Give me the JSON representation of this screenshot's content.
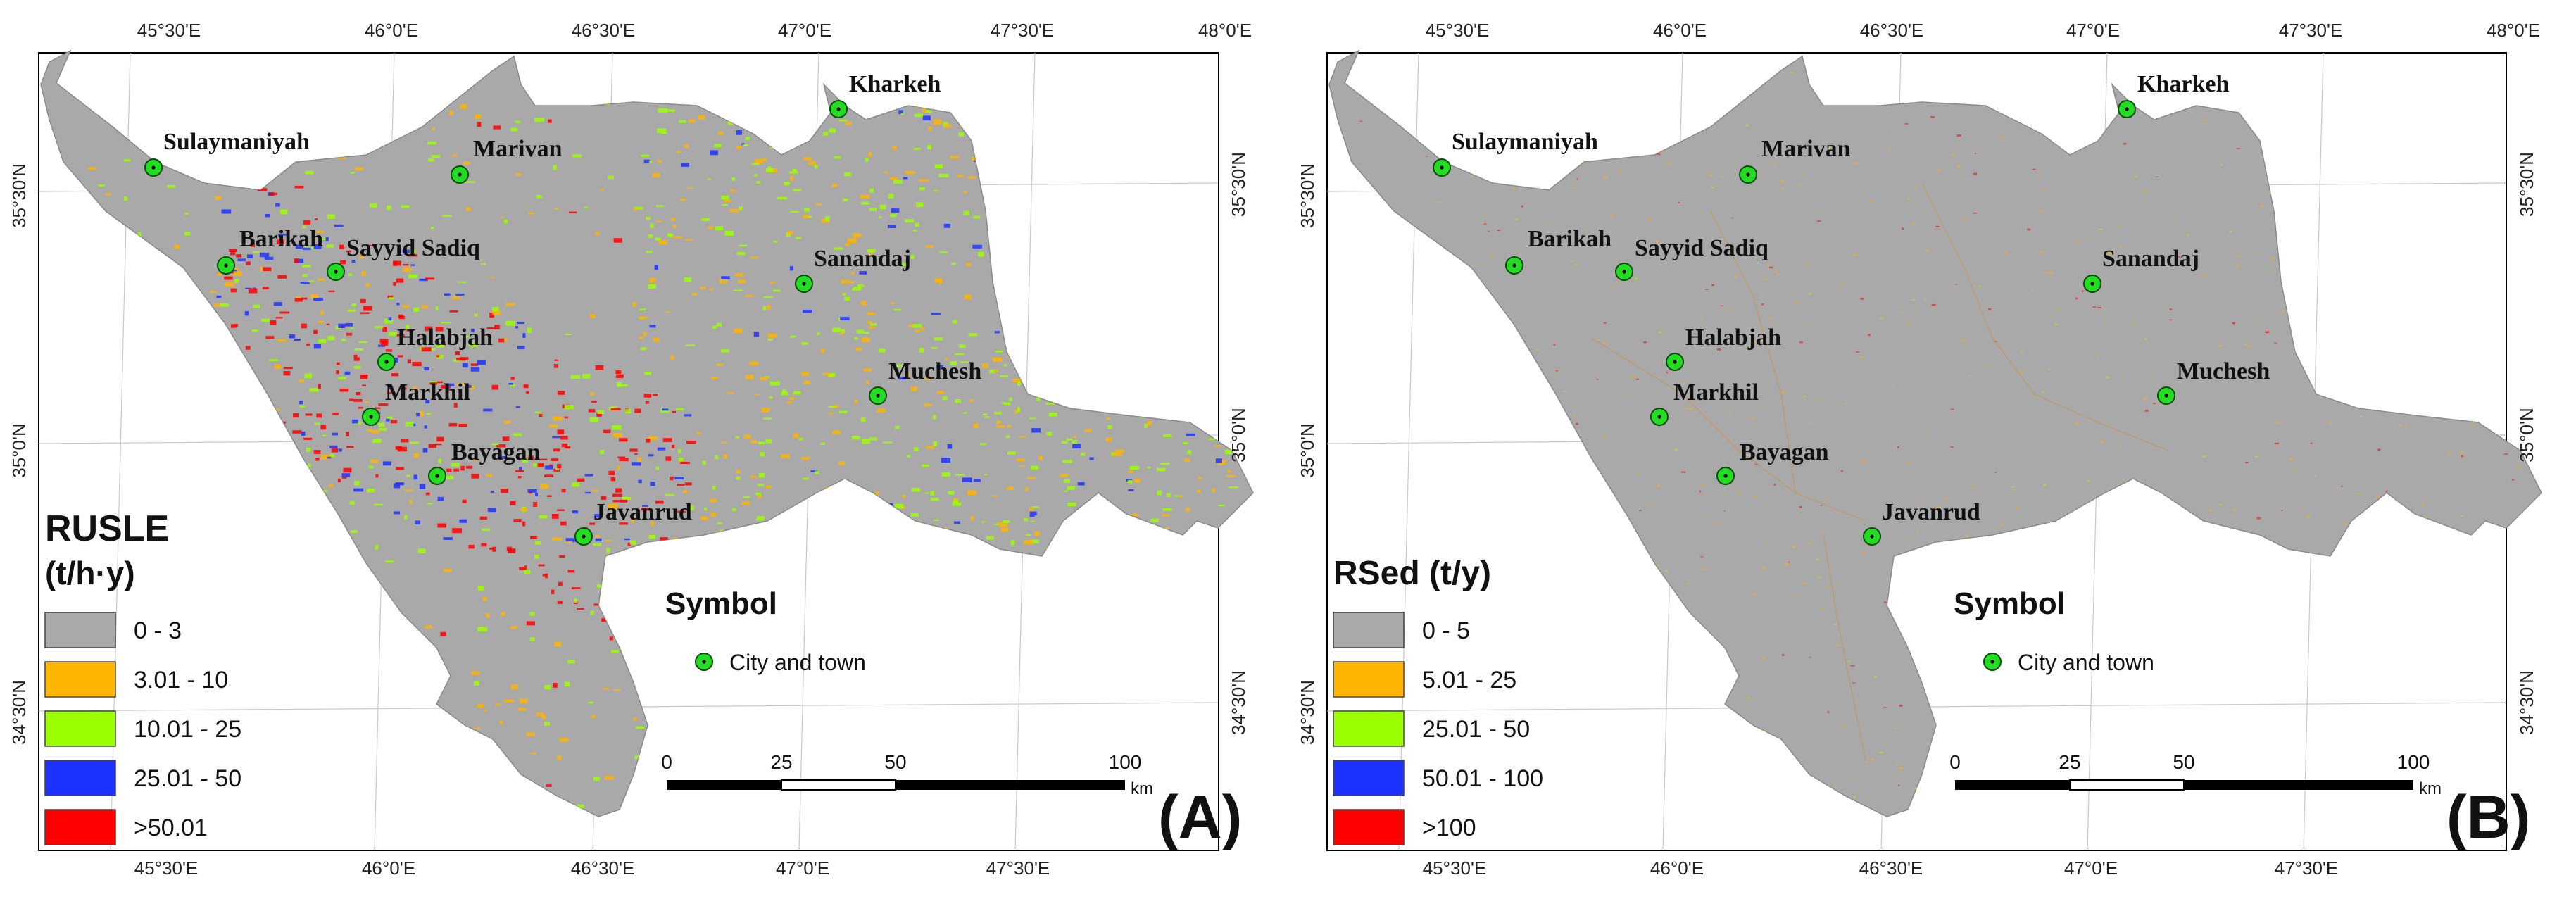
{
  "panels": [
    {
      "id": "A",
      "panel_label": "(A)",
      "legend": {
        "title_line1": "RUSLE",
        "title_line2": "(t/h·y)",
        "classes": [
          {
            "label": "0 - 3",
            "color": "#a9a9a9"
          },
          {
            "label": "3.01 - 10",
            "color": "#ffb400"
          },
          {
            "label": "10.01 - 25",
            "color": "#9cff00"
          },
          {
            "label": "25.01 - 50",
            "color": "#1e32ff"
          },
          {
            "label": ">50.01",
            "color": "#ff0000"
          }
        ]
      }
    },
    {
      "id": "B",
      "panel_label": "(B)",
      "legend": {
        "title_line1": "RSed (t/y)",
        "title_line2": "",
        "classes": [
          {
            "label": "0 - 5",
            "color": "#a9a9a9"
          },
          {
            "label": "5.01 - 25",
            "color": "#ffb400"
          },
          {
            "label": "25.01 - 50",
            "color": "#9cff00"
          },
          {
            "label": "50.01 - 100",
            "color": "#1e32ff"
          },
          {
            "label": ">100",
            "color": "#ff0000"
          }
        ]
      }
    }
  ],
  "symbol_legend": {
    "title": "Symbol",
    "item_label": "City and town",
    "marker_color": "#22dd22"
  },
  "scale_bar": {
    "ticks": [
      "0",
      "25",
      "50",
      "100"
    ],
    "unit": "km"
  },
  "graticule": {
    "top_labels": [
      "45°30'E",
      "46°0'E",
      "46°30'E",
      "47°0'E",
      "47°30'E",
      "48°0'E"
    ],
    "bottom_labels": [
      "45°30'E",
      "46°0'E",
      "46°30'E",
      "47°0'E",
      "47°30'E"
    ],
    "left_labels": [
      "35°30'N",
      "35°0'N",
      "34°30'N"
    ],
    "right_labels": [
      "35°30'N",
      "35°0'N",
      "34°30'N"
    ]
  },
  "cities": [
    {
      "name": "Sulaymaniyah"
    },
    {
      "name": "Marivan"
    },
    {
      "name": "Kharkeh"
    },
    {
      "name": "Barikah"
    },
    {
      "name": "Sayyid Sadiq"
    },
    {
      "name": "Sanandaj"
    },
    {
      "name": "Halabjah"
    },
    {
      "name": "Muchesh"
    },
    {
      "name": "Markhil"
    },
    {
      "name": "Bayagan"
    },
    {
      "name": "Javanrud"
    }
  ]
}
